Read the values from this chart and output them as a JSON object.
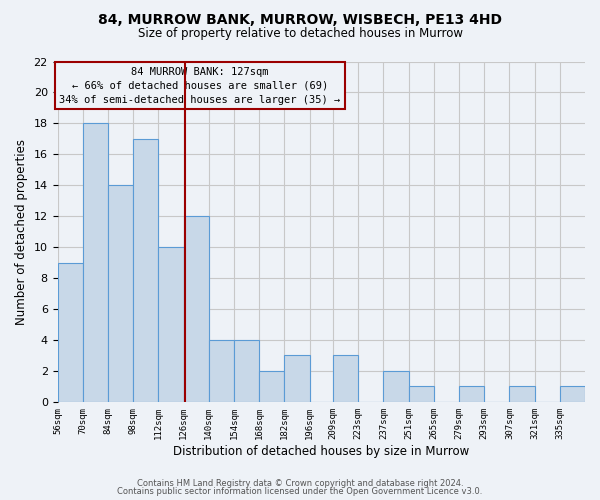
{
  "title": "84, MURROW BANK, MURROW, WISBECH, PE13 4HD",
  "subtitle": "Size of property relative to detached houses in Murrow",
  "xlabel": "Distribution of detached houses by size in Murrow",
  "ylabel": "Number of detached properties",
  "footnote1": "Contains HM Land Registry data © Crown copyright and database right 2024.",
  "footnote2": "Contains public sector information licensed under the Open Government Licence v3.0.",
  "bin_labels": [
    "56sqm",
    "70sqm",
    "84sqm",
    "98sqm",
    "112sqm",
    "126sqm",
    "140sqm",
    "154sqm",
    "168sqm",
    "182sqm",
    "196sqm",
    "209sqm",
    "223sqm",
    "237sqm",
    "251sqm",
    "265sqm",
    "279sqm",
    "293sqm",
    "307sqm",
    "321sqm",
    "335sqm"
  ],
  "bin_edges": [
    56,
    70,
    84,
    98,
    112,
    126,
    140,
    154,
    168,
    182,
    196,
    209,
    223,
    237,
    251,
    265,
    279,
    293,
    307,
    321,
    335,
    349
  ],
  "bar_heights": [
    9,
    18,
    14,
    17,
    10,
    12,
    4,
    4,
    2,
    3,
    0,
    3,
    0,
    2,
    1,
    0,
    1,
    0,
    1,
    0,
    1
  ],
  "bar_color": "#c8d8e8",
  "bar_edge_color": "#5b9bd5",
  "grid_color": "#c8c8c8",
  "vline_x": 127,
  "vline_color": "#9b0000",
  "annotation_text1": "84 MURROW BANK: 127sqm",
  "annotation_text2": "← 66% of detached houses are smaller (69)",
  "annotation_text3": "34% of semi-detached houses are larger (35) →",
  "annotation_box_color": "#9b0000",
  "ylim": [
    0,
    22
  ],
  "yticks": [
    0,
    2,
    4,
    6,
    8,
    10,
    12,
    14,
    16,
    18,
    20,
    22
  ],
  "background_color": "#eef2f7"
}
